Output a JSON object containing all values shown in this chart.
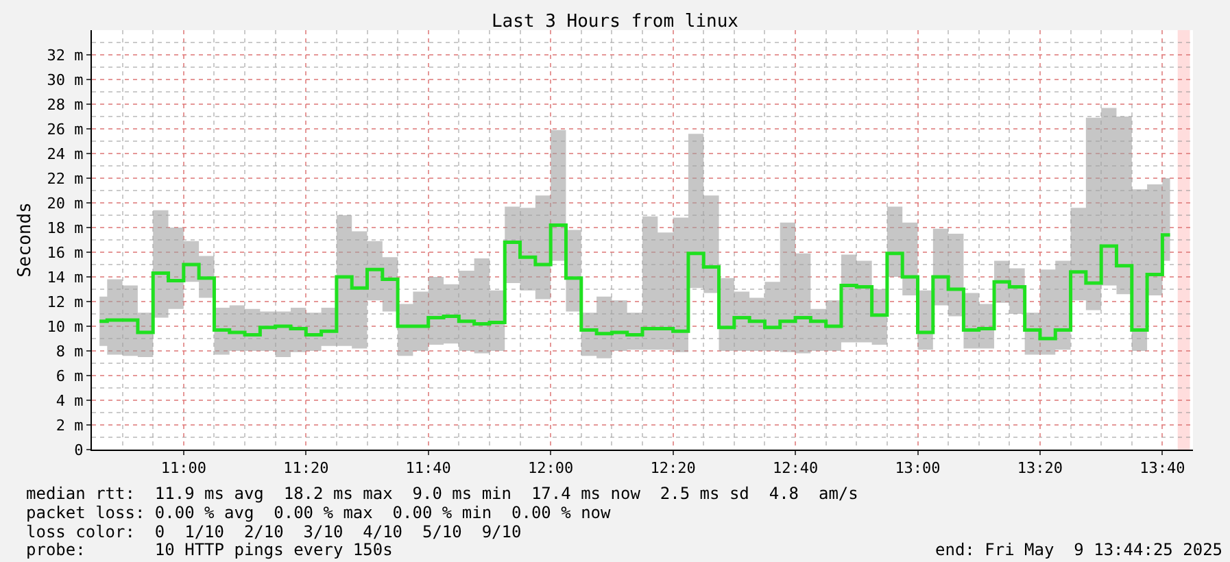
{
  "chart_data": {
    "type": "step",
    "title": "Last 3 Hours from linux",
    "ylabel": "Seconds",
    "x": [
      "2025-05-09T10:46:15",
      "2025-05-09T10:48:45",
      "2025-05-09T10:51:15",
      "2025-05-09T10:53:45",
      "2025-05-09T10:56:15",
      "2025-05-09T10:58:45",
      "2025-05-09T11:01:15",
      "2025-05-09T11:03:45",
      "2025-05-09T11:06:15",
      "2025-05-09T11:08:45",
      "2025-05-09T11:11:15",
      "2025-05-09T11:13:45",
      "2025-05-09T11:16:15",
      "2025-05-09T11:18:45",
      "2025-05-09T11:21:15",
      "2025-05-09T11:23:45",
      "2025-05-09T11:26:15",
      "2025-05-09T11:28:45",
      "2025-05-09T11:31:15",
      "2025-05-09T11:33:45",
      "2025-05-09T11:36:15",
      "2025-05-09T11:38:45",
      "2025-05-09T11:41:15",
      "2025-05-09T11:43:45",
      "2025-05-09T11:46:15",
      "2025-05-09T11:48:45",
      "2025-05-09T11:51:15",
      "2025-05-09T11:53:45",
      "2025-05-09T11:56:15",
      "2025-05-09T11:58:45",
      "2025-05-09T12:01:15",
      "2025-05-09T12:03:45",
      "2025-05-09T12:06:15",
      "2025-05-09T12:08:45",
      "2025-05-09T12:11:15",
      "2025-05-09T12:13:45",
      "2025-05-09T12:16:15",
      "2025-05-09T12:18:45",
      "2025-05-09T12:21:15",
      "2025-05-09T12:23:45",
      "2025-05-09T12:26:15",
      "2025-05-09T12:28:45",
      "2025-05-09T12:31:15",
      "2025-05-09T12:33:45",
      "2025-05-09T12:36:15",
      "2025-05-09T12:38:45",
      "2025-05-09T12:41:15",
      "2025-05-09T12:43:45",
      "2025-05-09T12:46:15",
      "2025-05-09T12:48:45",
      "2025-05-09T12:51:15",
      "2025-05-09T12:53:45",
      "2025-05-09T12:56:15",
      "2025-05-09T12:58:45",
      "2025-05-09T13:01:15",
      "2025-05-09T13:03:45",
      "2025-05-09T13:06:15",
      "2025-05-09T13:08:45",
      "2025-05-09T13:11:15",
      "2025-05-09T13:13:45",
      "2025-05-09T13:16:15",
      "2025-05-09T13:18:45",
      "2025-05-09T13:21:15",
      "2025-05-09T13:23:45",
      "2025-05-09T13:26:15",
      "2025-05-09T13:28:45",
      "2025-05-09T13:31:15",
      "2025-05-09T13:33:45",
      "2025-05-09T13:36:15",
      "2025-05-09T13:38:45",
      "2025-05-09T13:41:15"
    ],
    "series": [
      {
        "color": "#20e020",
        "values": [
          10.4,
          10.5,
          10.5,
          9.5,
          14.3,
          13.7,
          15.0,
          13.9,
          9.7,
          9.5,
          9.3,
          9.9,
          10.0,
          9.8,
          9.3,
          9.6,
          14.0,
          13.1,
          14.6,
          13.8,
          10.0,
          10.0,
          10.7,
          10.8,
          10.4,
          10.2,
          10.3,
          16.8,
          15.6,
          15.0,
          18.2,
          13.9,
          9.7,
          9.4,
          9.5,
          9.3,
          9.8,
          9.8,
          9.6,
          15.9,
          14.8,
          9.9,
          10.7,
          10.4,
          9.9,
          10.4,
          10.7,
          10.4,
          10.0,
          13.3,
          13.2,
          10.9,
          15.9,
          14.0,
          9.5,
          14.0,
          13.0,
          9.7,
          9.8,
          13.6,
          13.2,
          9.7,
          9.0,
          9.7,
          14.4,
          13.5,
          16.5,
          14.9,
          9.7,
          14.2,
          17.4
        ],
        "lower": [
          8.4,
          7.7,
          7.6,
          7.5,
          10.7,
          11.4,
          13.6,
          12.3,
          7.7,
          8.0,
          8.0,
          8.0,
          7.5,
          7.9,
          8.0,
          8.4,
          8.4,
          8.2,
          12.1,
          11.2,
          7.6,
          8.0,
          8.5,
          8.6,
          8.0,
          7.8,
          8.0,
          13.5,
          12.9,
          12.2,
          15.3,
          11.2,
          7.6,
          7.4,
          8.0,
          8.1,
          8.1,
          8.1,
          7.9,
          13.1,
          12.7,
          8.0,
          8.0,
          8.0,
          8.0,
          7.9,
          7.8,
          8.0,
          8.0,
          8.7,
          8.7,
          8.5,
          14.0,
          12.5,
          8.1,
          11.7,
          10.8,
          8.2,
          8.2,
          11.9,
          11.0,
          7.7,
          7.7,
          8.1,
          12.1,
          11.3,
          13.3,
          12.6,
          8.0,
          12.5,
          15.3
        ],
        "upper": [
          12.4,
          13.8,
          13.3,
          11.1,
          19.4,
          18.0,
          16.9,
          15.7,
          11.5,
          11.7,
          11.4,
          11.2,
          11.2,
          11.5,
          11.1,
          11.5,
          19.0,
          17.7,
          16.9,
          15.6,
          11.8,
          12.8,
          14.0,
          13.4,
          14.5,
          15.5,
          12.9,
          19.7,
          19.6,
          20.6,
          25.9,
          17.8,
          11.1,
          12.4,
          12.1,
          11.1,
          18.9,
          17.6,
          18.8,
          25.6,
          20.6,
          13.9,
          12.8,
          12.3,
          13.6,
          18.4,
          15.9,
          11.4,
          12.1,
          15.8,
          15.3,
          13.0,
          19.7,
          18.4,
          12.9,
          17.9,
          17.5,
          12.7,
          11.8,
          15.3,
          14.7,
          11.1,
          14.6,
          15.3,
          19.6,
          26.9,
          27.7,
          27.0,
          21.1,
          21.5,
          22.0
        ]
      }
    ],
    "xlim": [
      "2025-05-09T10:45",
      "2025-05-09T13:45"
    ],
    "xticks": [
      {
        "value": "2025-05-09T11:00",
        "label": "11:00"
      },
      {
        "value": "2025-05-09T11:20",
        "label": "11:20"
      },
      {
        "value": "2025-05-09T11:40",
        "label": "11:40"
      },
      {
        "value": "2025-05-09T12:00",
        "label": "12:00"
      },
      {
        "value": "2025-05-09T12:20",
        "label": "12:20"
      },
      {
        "value": "2025-05-09T12:40",
        "label": "12:40"
      },
      {
        "value": "2025-05-09T13:00",
        "label": "13:00"
      },
      {
        "value": "2025-05-09T13:20",
        "label": "13:20"
      },
      {
        "value": "2025-05-09T13:40",
        "label": "13:40"
      }
    ],
    "ylim": [
      0,
      34
    ],
    "yticks": [
      0,
      {
        "value": 2,
        "label": "2 m"
      },
      {
        "value": 4,
        "label": "4 m"
      },
      {
        "value": 6,
        "label": "6 m"
      },
      {
        "value": 8,
        "label": "8 m"
      },
      {
        "value": 10,
        "label": "10 m"
      },
      {
        "value": 12,
        "label": "12 m"
      },
      {
        "value": 14,
        "label": "14 m"
      },
      {
        "value": 16,
        "label": "16 m"
      },
      {
        "value": 18,
        "label": "18 m"
      },
      {
        "value": 20,
        "label": "20 m"
      },
      {
        "value": 22,
        "label": "22 m"
      },
      {
        "value": 24,
        "label": "24 m"
      },
      {
        "value": 26,
        "label": "26 m"
      },
      {
        "value": 28,
        "label": "28 m"
      },
      {
        "value": 30,
        "label": "30 m"
      },
      {
        "value": 32,
        "label": "32 m"
      }
    ],
    "bands": [
      {
        "axis": "x",
        "from": "2025-05-09T13:42:30",
        "to": "2025-05-09T13:44:30",
        "color": "#ffdddd"
      }
    ],
    "grid": true,
    "annotations": [
      "median rtt:  11.9 ms avg  18.2 ms max  9.0 ms min  17.4 ms now  2.5 ms sd  4.8  am/s",
      "packet loss: 0.00 % avg  0.00 % max  0.00 % min  0.00 % now",
      "loss color:  0  1/10  2/10  3/10  4/10  5/10  9/10",
      "probe:       10 HTTP pings every 150s",
      "end: Fri May  9 13:44:25 2025"
    ]
  }
}
